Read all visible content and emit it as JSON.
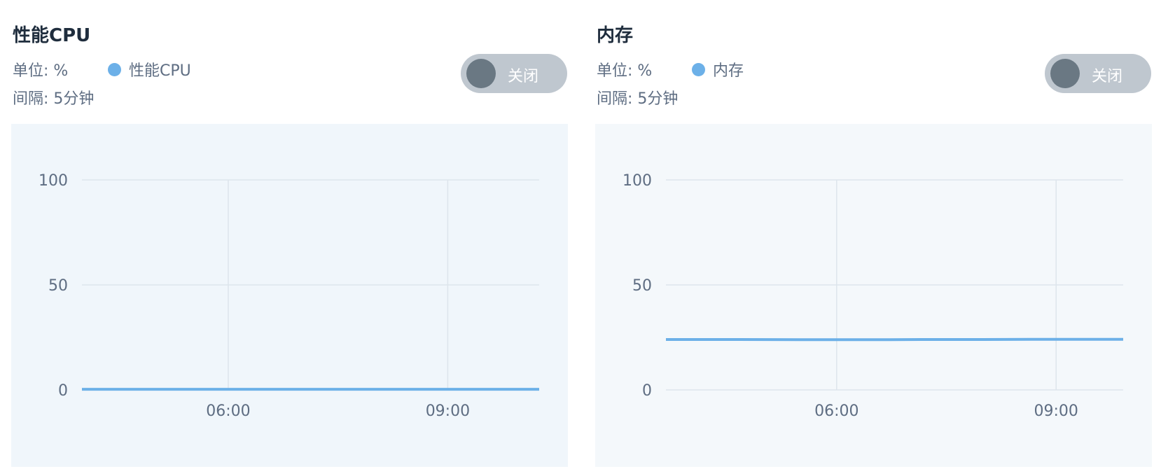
{
  "chart_data": [
    {
      "type": "line",
      "title": "性能CPU",
      "unit_text": "单位: %",
      "interval_text": "间隔: 5分钟",
      "toggle_label": "关闭",
      "ylim": [
        0,
        100
      ],
      "yticks": [
        0,
        50,
        100
      ],
      "xlim": [
        240,
        615
      ],
      "xticks": [
        {
          "value": 360,
          "label": "06:00"
        },
        {
          "value": 540,
          "label": "09:00"
        }
      ],
      "grid": true,
      "legend_position": "top-left",
      "series": [
        {
          "name": "性能CPU",
          "color": "#6cb0e8",
          "x": [
            240,
            300,
            360,
            420,
            480,
            540,
            615
          ],
          "y": [
            0.3,
            0.3,
            0.3,
            0.3,
            0.3,
            0.3,
            0.3
          ]
        }
      ]
    },
    {
      "type": "line",
      "title": "内存",
      "unit_text": "单位: %",
      "interval_text": "间隔: 5分钟",
      "toggle_label": "关闭",
      "ylim": [
        0,
        100
      ],
      "yticks": [
        0,
        50,
        100
      ],
      "xlim": [
        240,
        615
      ],
      "xticks": [
        {
          "value": 380,
          "label": "06:00"
        },
        {
          "value": 560,
          "label": "09:00"
        }
      ],
      "grid": true,
      "legend_position": "top-left",
      "series": [
        {
          "name": "内存",
          "color": "#6cb0e8",
          "x": [
            240,
            300,
            360,
            420,
            450,
            500,
            540,
            560,
            615
          ],
          "y": [
            24,
            24,
            23.9,
            23.9,
            24,
            24,
            24.1,
            24.1,
            24.1
          ]
        }
      ]
    }
  ]
}
